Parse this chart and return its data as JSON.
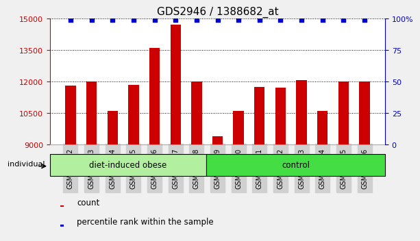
{
  "title": "GDS2946 / 1388682_at",
  "categories": [
    "GSM215572",
    "GSM215573",
    "GSM215574",
    "GSM215575",
    "GSM215576",
    "GSM215577",
    "GSM215578",
    "GSM215579",
    "GSM215580",
    "GSM215581",
    "GSM215582",
    "GSM215583",
    "GSM215584",
    "GSM215585",
    "GSM215586"
  ],
  "bar_values": [
    11800,
    12000,
    10600,
    11850,
    13600,
    14700,
    12000,
    9400,
    10600,
    11750,
    11700,
    12050,
    10600,
    12000,
    12000
  ],
  "percentile_values": [
    99,
    99,
    99,
    99,
    99,
    99,
    99,
    99,
    99,
    99,
    99,
    99,
    99,
    99,
    99
  ],
  "bar_color": "#cc0000",
  "percentile_color": "#0000cc",
  "ymin": 9000,
  "ymax": 15000,
  "ylim_left": [
    9000,
    15000
  ],
  "ylim_right": [
    0,
    100
  ],
  "yticks_left": [
    9000,
    10500,
    12000,
    13500,
    15000
  ],
  "yticks_right": [
    0,
    25,
    50,
    75,
    100
  ],
  "ytick_labels_right": [
    "0",
    "25",
    "50",
    "75",
    "100%"
  ],
  "group1_label": "diet-induced obese",
  "group1_count": 7,
  "group2_label": "control",
  "group2_count": 8,
  "group_label_prefix": "individual",
  "group1_color": "#b2f0a0",
  "group2_color": "#44dd44",
  "legend_count_label": "count",
  "legend_percentile_label": "percentile rank within the sample",
  "fig_bg_color": "#f0f0f0",
  "plot_bg_color": "#ffffff",
  "xticklabel_bg": "#d0d0d0",
  "title_fontsize": 11,
  "axis_label_color_left": "#cc0000",
  "axis_label_color_right": "#0000cc"
}
